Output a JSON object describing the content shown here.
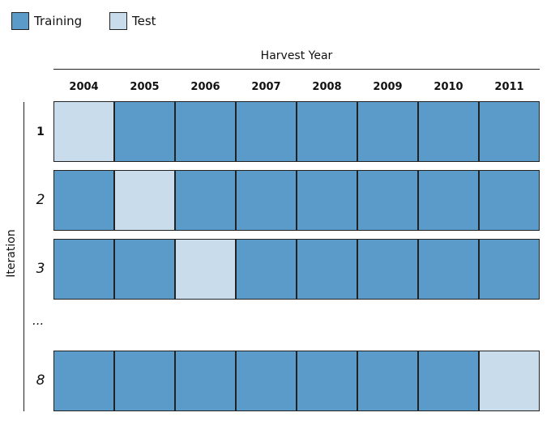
{
  "legend": {
    "training_label": "Training",
    "test_label": "Test",
    "training_color": "#5b9bc9",
    "test_color": "#c8dcec"
  },
  "x_axis": {
    "title": "Harvest Year",
    "years": [
      "2004",
      "2005",
      "2006",
      "2007",
      "2008",
      "2009",
      "2010",
      "2011"
    ]
  },
  "y_axis": {
    "title": "Iteration"
  },
  "ellipsis": "...",
  "rows": [
    {
      "label": "1",
      "test_index": 0
    },
    {
      "label": "2",
      "test_index": 1
    },
    {
      "label": "3",
      "test_index": 2
    },
    {
      "label": "8",
      "test_index": 7
    }
  ]
}
